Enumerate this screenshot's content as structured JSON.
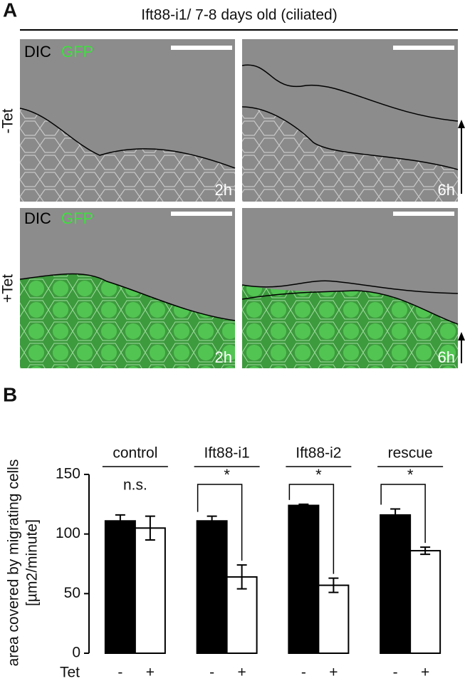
{
  "panel_a": {
    "letter": "A",
    "title": "Ift88-i1/ 7-8 days old (ciliated)",
    "rows": [
      {
        "label": "-Tet",
        "images": [
          {
            "channels": [
              "DIC",
              "GFP"
            ],
            "time": "2h"
          },
          {
            "time": "6h"
          }
        ]
      },
      {
        "label": "+Tet",
        "images": [
          {
            "channels": [
              "DIC",
              "GFP"
            ],
            "time": "2h"
          },
          {
            "time": "6h"
          }
        ]
      }
    ]
  },
  "panel_b": {
    "letter": "B"
  },
  "chart_data": {
    "type": "bar",
    "ylabel": [
      "area covered by migrating cells",
      "[µm2/minute]"
    ],
    "xlabel": "Tet",
    "categories": [
      "control",
      "Ift88-i1",
      "Ift88-i2",
      "rescue"
    ],
    "series": [
      {
        "name": "-",
        "color": "#000000",
        "values": [
          111,
          111,
          124,
          116
        ],
        "errors": [
          5,
          4,
          1,
          5
        ]
      },
      {
        "name": "+",
        "color": "#ffffff",
        "values": [
          105,
          64,
          57,
          86
        ],
        "errors": [
          10,
          10,
          6,
          3
        ]
      }
    ],
    "annotations": [
      "n.s.",
      "*",
      "*",
      "*"
    ],
    "ylim": [
      0,
      150
    ],
    "yticks": [
      0,
      50,
      100,
      150
    ],
    "grid": false
  }
}
